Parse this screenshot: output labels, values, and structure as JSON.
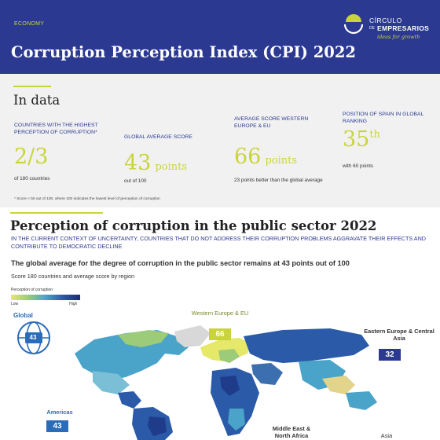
{
  "header": {
    "section_tag": "ECONOMY",
    "title": "Corruption Perception Index (CPI) 2022",
    "logo": {
      "line1": "CÍRCULO",
      "de": "DE",
      "line2": "EMPRESARIOS",
      "tagline": "ideas for growth"
    }
  },
  "in_data": {
    "title": "In data",
    "stats": [
      {
        "label": "COUNTRIES WITH THE HIGHEST PERCEPTION OF CORRUPTION*",
        "value": "2/3",
        "unit": "",
        "note": "of 180 countries"
      },
      {
        "label": "GLOBAL AVERAGE SCORE",
        "value": "43",
        "unit": "points",
        "note": "out of 100"
      },
      {
        "label": "AVERAGE SCORE WESTERN EUROPE & EU",
        "value": "66",
        "unit": "points",
        "note": "23 points better than the global average"
      },
      {
        "label": "POSITION OF SPAIN IN GLOBAL RANKING",
        "value": "35",
        "unit": "th",
        "note": "with 60 points"
      }
    ],
    "footnote": "* Score < 50 out of 100, where 100 indicates the lowest level of perception of corruption"
  },
  "public_sector": {
    "title": "Perception of corruption in the public sector 2022",
    "subtitle": "IN THE CURRENT CONTEXT OF UNCERTAINTY, COUNTRIES THAT DO NOT ADDRESS THEIR CORRUPTION PROBLEMS AGGRAVATE THEIR EFFECTS AND CONTRIBUTE TO DEMOCRATIC DECLINE",
    "chart_title": "The global average for the degree of corruption in the public sector remains at 43 points out of 100",
    "chart_subtitle": "Score 180 countries and average score by region",
    "legend": {
      "title": "Perception of corruption",
      "low": "Low",
      "high": "High"
    }
  },
  "regions": {
    "global": {
      "name": "Global",
      "score": "43"
    },
    "western_europe": {
      "name": "Western Europe & EU",
      "score": "66"
    },
    "eastern_europe": {
      "name": "Eastern Europe & Central Asia",
      "score": "32"
    },
    "americas": {
      "name": "Americas",
      "score": "43"
    },
    "middle_east": {
      "name": "Middle East & North Africa"
    },
    "asia": {
      "name": "Asia"
    }
  },
  "colors": {
    "primary_blue": "#2b3990",
    "accent_lime": "#c9d43a",
    "badge_blue": "#2b3990",
    "badge_green": "#c9d43a"
  }
}
